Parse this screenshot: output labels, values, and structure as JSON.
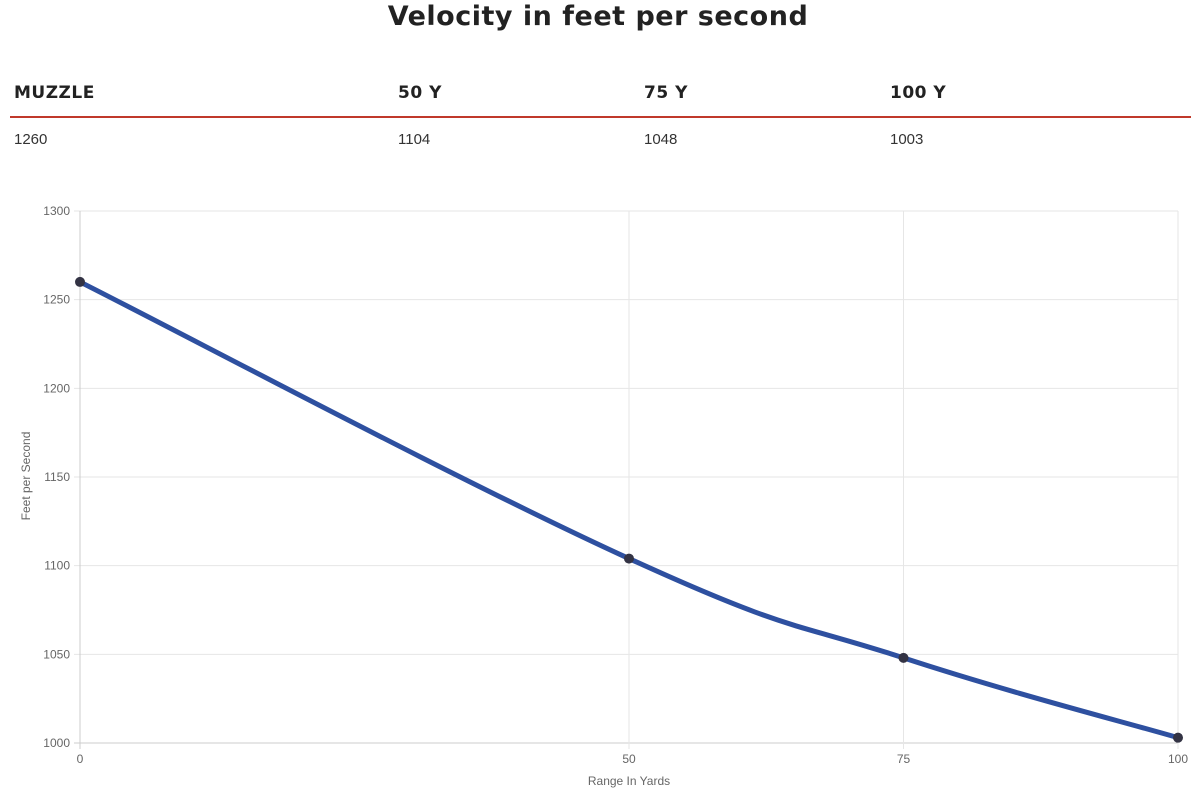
{
  "page": {
    "title": "Velocity in feet per second"
  },
  "table": {
    "headers": [
      "MUZZLE",
      "50 Y",
      "75 Y",
      "100 Y"
    ],
    "values": [
      "1260",
      "1104",
      "1048",
      "1003"
    ],
    "accent_color": "#c0392b"
  },
  "chart_data": {
    "type": "line",
    "x": [
      0,
      50,
      75,
      100
    ],
    "series": [
      {
        "values": [
          1260,
          1104,
          1048,
          1003
        ],
        "color": "#2e50a0"
      }
    ],
    "xlabel": "Range In Yards",
    "ylabel": "Feet per Second",
    "ylim": [
      1000,
      1300
    ],
    "yticks": [
      1000,
      1050,
      1100,
      1150,
      1200,
      1250,
      1300
    ],
    "xticks": [
      0,
      50,
      75,
      100
    ],
    "grid": true,
    "legend": "none",
    "point_color": "#333344"
  }
}
